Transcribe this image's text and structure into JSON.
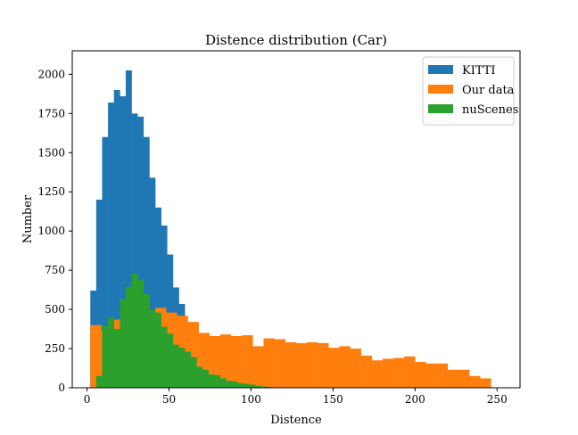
{
  "chart_data": {
    "type": "bar",
    "subtype": "histogram",
    "title": "Distence distribution (Car)",
    "xlabel": "Distence",
    "ylabel": "Number",
    "xlim": [
      -9,
      264
    ],
    "ylim": [
      0,
      2150
    ],
    "xticks": [
      0,
      50,
      100,
      150,
      200,
      250
    ],
    "yticks": [
      0,
      250,
      500,
      750,
      1000,
      1250,
      1500,
      1750,
      2000
    ],
    "grid": false,
    "legend_position": "top-right",
    "series": [
      {
        "name": "KITTI",
        "color": "#1f77b4",
        "bin_width": 3.6,
        "bins": [
          {
            "x0": 2,
            "value": 620
          },
          {
            "x0": 5.6,
            "value": 1200
          },
          {
            "x0": 9.2,
            "value": 1600
          },
          {
            "x0": 12.8,
            "value": 1820
          },
          {
            "x0": 16.4,
            "value": 1900
          },
          {
            "x0": 20.0,
            "value": 1860
          },
          {
            "x0": 23.6,
            "value": 2025
          },
          {
            "x0": 27.2,
            "value": 1750
          },
          {
            "x0": 30.8,
            "value": 1730
          },
          {
            "x0": 34.4,
            "value": 1600
          },
          {
            "x0": 38.0,
            "value": 1340
          },
          {
            "x0": 41.6,
            "value": 1150
          },
          {
            "x0": 45.2,
            "value": 1035
          },
          {
            "x0": 48.8,
            "value": 850
          },
          {
            "x0": 52.4,
            "value": 640
          },
          {
            "x0": 56.0,
            "value": 535
          }
        ]
      },
      {
        "name": "Our data",
        "color": "#ff7f0e",
        "bin_width": 6.6,
        "bins": [
          {
            "x0": 2,
            "value": 400
          },
          {
            "x0": 8.6,
            "value": 365
          },
          {
            "x0": 15.2,
            "value": 435
          },
          {
            "x0": 21.8,
            "value": 360
          },
          {
            "x0": 28.4,
            "value": 375
          },
          {
            "x0": 35.0,
            "value": 365
          },
          {
            "x0": 41.6,
            "value": 510
          },
          {
            "x0": 48.2,
            "value": 480
          },
          {
            "x0": 54.8,
            "value": 460
          },
          {
            "x0": 61.4,
            "value": 420
          },
          {
            "x0": 68.0,
            "value": 350
          },
          {
            "x0": 74.6,
            "value": 330
          },
          {
            "x0": 81.2,
            "value": 340
          },
          {
            "x0": 87.8,
            "value": 330
          },
          {
            "x0": 94.4,
            "value": 335
          },
          {
            "x0": 101.0,
            "value": 265
          },
          {
            "x0": 107.6,
            "value": 315
          },
          {
            "x0": 114.2,
            "value": 310
          },
          {
            "x0": 120.8,
            "value": 290
          },
          {
            "x0": 127.4,
            "value": 285
          },
          {
            "x0": 134.0,
            "value": 290
          },
          {
            "x0": 140.6,
            "value": 285
          },
          {
            "x0": 147.2,
            "value": 255
          },
          {
            "x0": 153.8,
            "value": 265
          },
          {
            "x0": 160.4,
            "value": 250
          },
          {
            "x0": 167.0,
            "value": 205
          },
          {
            "x0": 173.6,
            "value": 175
          },
          {
            "x0": 180.2,
            "value": 185
          },
          {
            "x0": 186.8,
            "value": 190
          },
          {
            "x0": 193.4,
            "value": 200
          },
          {
            "x0": 200.0,
            "value": 165
          },
          {
            "x0": 206.6,
            "value": 155
          },
          {
            "x0": 213.2,
            "value": 155
          },
          {
            "x0": 219.8,
            "value": 115
          },
          {
            "x0": 226.4,
            "value": 115
          },
          {
            "x0": 233.0,
            "value": 75
          },
          {
            "x0": 239.6,
            "value": 60
          }
        ]
      },
      {
        "name": "nuScenes",
        "color": "#2ca02c",
        "bin_width": 3.6,
        "bins": [
          {
            "x0": 2,
            "value": 0
          },
          {
            "x0": 5.6,
            "value": 75
          },
          {
            "x0": 9.2,
            "value": 395
          },
          {
            "x0": 12.8,
            "value": 450
          },
          {
            "x0": 16.4,
            "value": 375
          },
          {
            "x0": 20.0,
            "value": 565
          },
          {
            "x0": 23.6,
            "value": 645
          },
          {
            "x0": 27.2,
            "value": 730
          },
          {
            "x0": 30.8,
            "value": 690
          },
          {
            "x0": 34.4,
            "value": 600
          },
          {
            "x0": 38.0,
            "value": 495
          },
          {
            "x0": 41.6,
            "value": 480
          },
          {
            "x0": 45.2,
            "value": 390
          },
          {
            "x0": 48.8,
            "value": 345
          },
          {
            "x0": 52.4,
            "value": 275
          },
          {
            "x0": 56.0,
            "value": 255
          },
          {
            "x0": 59.6,
            "value": 230
          },
          {
            "x0": 63.2,
            "value": 195
          },
          {
            "x0": 66.8,
            "value": 135
          },
          {
            "x0": 70.4,
            "value": 115
          },
          {
            "x0": 74.0,
            "value": 85
          },
          {
            "x0": 77.6,
            "value": 80
          },
          {
            "x0": 81.2,
            "value": 60
          },
          {
            "x0": 84.8,
            "value": 45
          },
          {
            "x0": 88.4,
            "value": 40
          },
          {
            "x0": 92.0,
            "value": 30
          },
          {
            "x0": 95.6,
            "value": 25
          },
          {
            "x0": 99.2,
            "value": 20
          },
          {
            "x0": 102.8,
            "value": 12
          },
          {
            "x0": 106.4,
            "value": 8
          },
          {
            "x0": 110.0,
            "value": 5
          }
        ]
      }
    ]
  }
}
